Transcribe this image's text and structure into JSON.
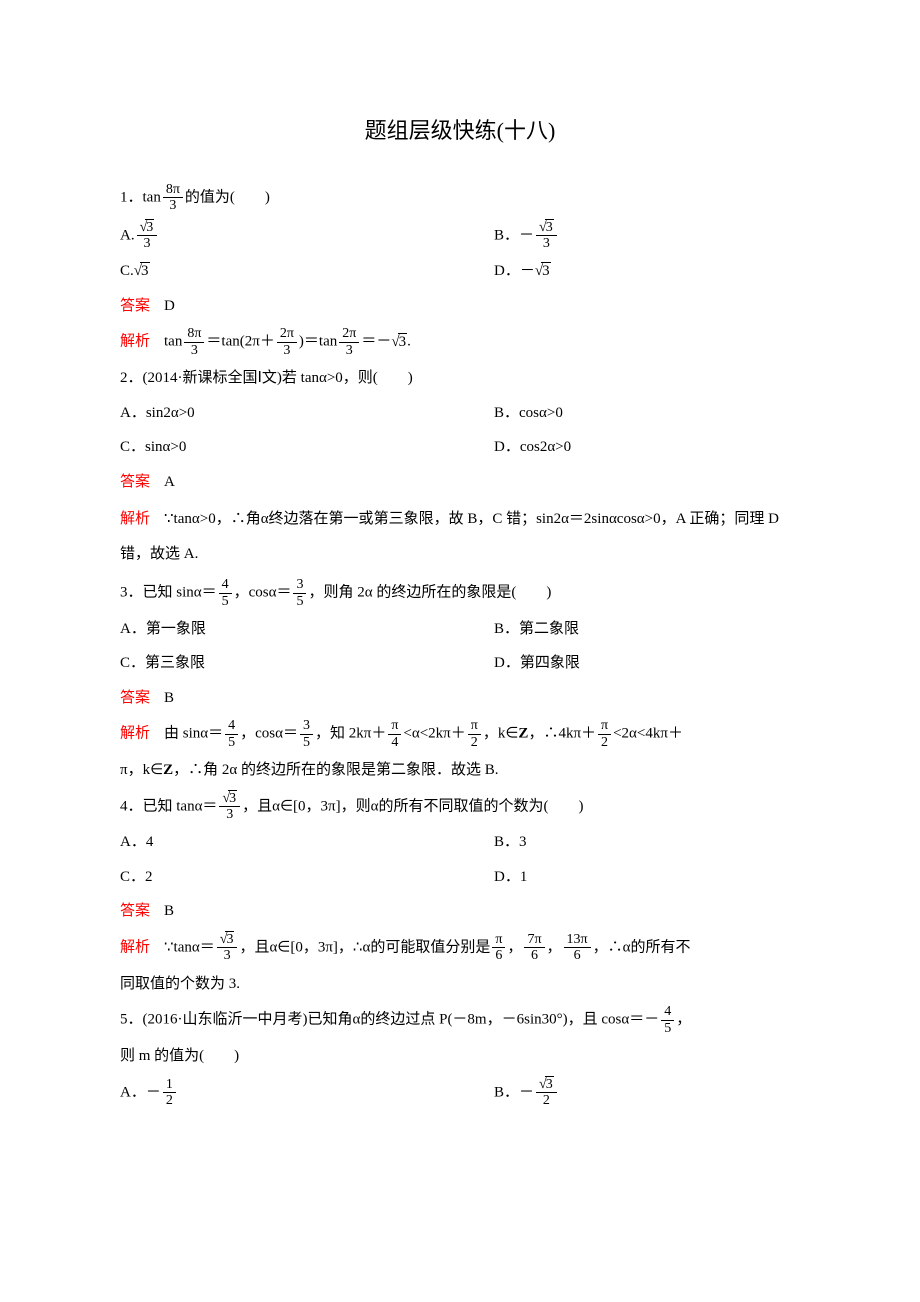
{
  "title": "题组层级快练(十八)",
  "colors": {
    "text": "#000000",
    "accent": "#ff0000",
    "background": "#ffffff"
  },
  "labels": {
    "answer": "答案",
    "analysis": "解析"
  },
  "q1": {
    "prefix": "1．tan",
    "tail": "的值为(　　)",
    "frac": {
      "num": "8π",
      "den": "3"
    },
    "optA_prefix": "A.",
    "optA_frac": {
      "num_radicand": "3",
      "den": "3"
    },
    "optB_prefix": "B．－",
    "optB_frac": {
      "num_radicand": "3",
      "den": "3"
    },
    "optC_prefix": "C.",
    "optC_radicand": "3",
    "optD_prefix": "D．－",
    "optD_radicand": "3",
    "answer": "D",
    "ana_p1": "tan",
    "ana_f1": {
      "num": "8π",
      "den": "3"
    },
    "ana_p2": "＝tan(2π＋",
    "ana_f2": {
      "num": "2π",
      "den": "3"
    },
    "ana_p3": ")＝tan",
    "ana_f3": {
      "num": "2π",
      "den": "3"
    },
    "ana_p4": "＝－",
    "ana_rad": "3",
    "ana_p5": "."
  },
  "q2": {
    "stem": "2．(2014·新课标全国Ⅰ文)若 tanα>0，则(　　)",
    "optA": "A．sin2α>0",
    "optB": "B．cosα>0",
    "optC": "C．sinα>0",
    "optD": "D．cos2α>0",
    "answer": "A",
    "analysis_full": "∵tanα>0，∴角α终边落在第一或第三象限，故 B，C 错；sin2α＝2sinαcosα>0，A 正确；同理 D 错，故选 A."
  },
  "q3": {
    "p1": "3．已知 sinα＝",
    "f1": {
      "num": "4",
      "den": "5"
    },
    "p2": "，cosα＝",
    "f2": {
      "num": "3",
      "den": "5"
    },
    "p3": "，则角 2α 的终边所在的象限是(　　)",
    "optA": "A．第一象限",
    "optB": "B．第二象限",
    "optC": "C．第三象限",
    "optD": "D．第四象限",
    "answer": "B",
    "ana_p1": "由 sinα＝",
    "ana_f1": {
      "num": "4",
      "den": "5"
    },
    "ana_p2": "，cosα＝",
    "ana_f2": {
      "num": "3",
      "den": "5"
    },
    "ana_p3": "，知 2kπ＋",
    "ana_f3": {
      "num": "π",
      "den": "4"
    },
    "ana_p4": "<α<2kπ＋",
    "ana_f4": {
      "num": "π",
      "den": "2"
    },
    "ana_p5": "，k∈",
    "ana_Z1": "Z",
    "ana_p6": "，∴4kπ＋",
    "ana_f5": {
      "num": "π",
      "den": "2"
    },
    "ana_p7": "<2α<4kπ＋",
    "ana_line2_p1": "π，k∈",
    "ana_Z2": "Z",
    "ana_line2_p2": "，∴角 2α 的终边所在的象限是第二象限．故选 B."
  },
  "q4": {
    "p1": "4．已知 tanα＝",
    "f1_num_rad": "3",
    "f1_den": "3",
    "p2": "，且α∈[0，3π]，则α的所有不同取值的个数为(　　)",
    "optA": "A．4",
    "optB": "B．3",
    "optC": "C．2",
    "optD": "D．1",
    "answer": "B",
    "ana_p1": "∵tanα＝",
    "ana_f1_num_rad": "3",
    "ana_f1_den": "3",
    "ana_p2": "，且α∈[0，3π]，∴α的可能取值分别是",
    "ana_f2": {
      "num": "π",
      "den": "6"
    },
    "ana_c1": "，",
    "ana_f3": {
      "num": "7π",
      "den": "6"
    },
    "ana_c2": "，",
    "ana_f4": {
      "num": "13π",
      "den": "6"
    },
    "ana_p3": "，∴α的所有不",
    "ana_line2": "同取值的个数为 3."
  },
  "q5": {
    "p1": "5．(2016·山东临沂一中月考)已知角α的终边过点 P(－8m，－6sin30°)，且 cosα＝－",
    "f1": {
      "num": "4",
      "den": "5"
    },
    "p2": "，",
    "line2": "则 m 的值为(　　)",
    "optA_prefix": "A．－",
    "optA_frac": {
      "num": "1",
      "den": "2"
    },
    "optB_prefix": "B．－",
    "optB_frac_num_rad": "3",
    "optB_frac_den": "2"
  }
}
